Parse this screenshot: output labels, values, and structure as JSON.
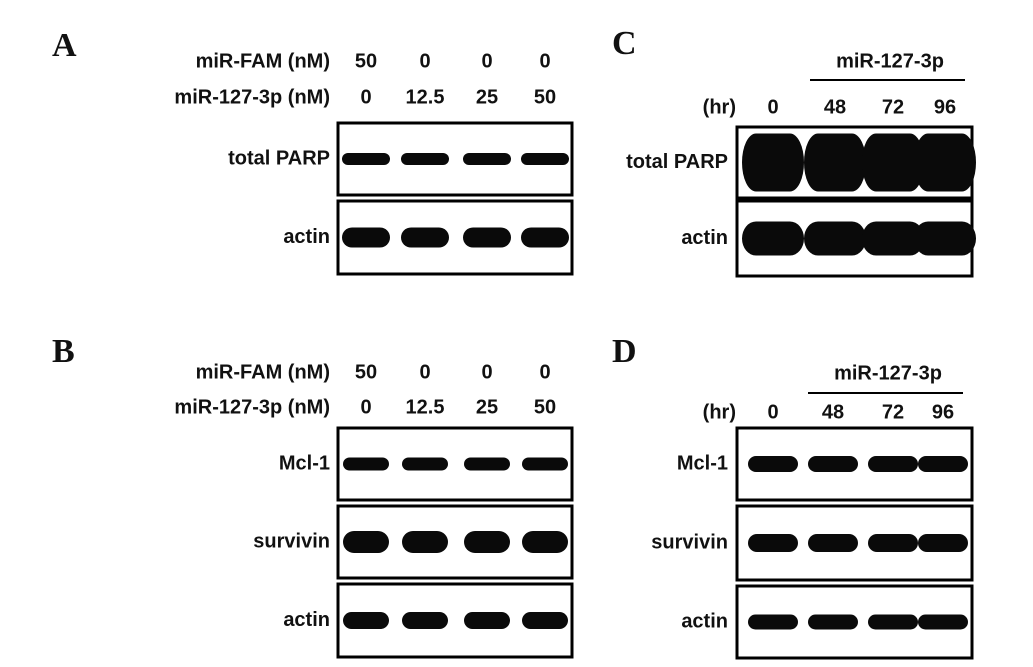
{
  "panels": [
    {
      "label": "A",
      "conditions": [
        {
          "name": "miR-FAM (nM)",
          "values": [
            50,
            0,
            0,
            0
          ]
        },
        {
          "name": "miR-127-3p  (nM)",
          "values": [
            0,
            12.5,
            25,
            50
          ]
        }
      ],
      "blots": [
        "total PARP",
        "actin"
      ]
    },
    {
      "label": "B",
      "conditions": [
        {
          "name": "miR-FAM (nM)",
          "values": [
            50,
            0,
            0,
            0
          ]
        },
        {
          "name": "miR-127-3p  (nM)",
          "values": [
            0,
            12.5,
            25,
            50
          ]
        }
      ],
      "blots": [
        "Mcl-1",
        "survivin",
        "actin"
      ]
    },
    {
      "label": "C",
      "treatment": "miR-127-3p",
      "time_unit": "(hr)",
      "times": [
        0,
        48,
        72,
        96
      ],
      "blots": [
        "total PARP",
        "actin"
      ]
    },
    {
      "label": "D",
      "treatment": "miR-127-3p",
      "time_unit": "(hr)",
      "times": [
        0,
        48,
        72,
        96
      ],
      "blots": [
        "Mcl-1",
        "survivin",
        "actin"
      ]
    }
  ]
}
